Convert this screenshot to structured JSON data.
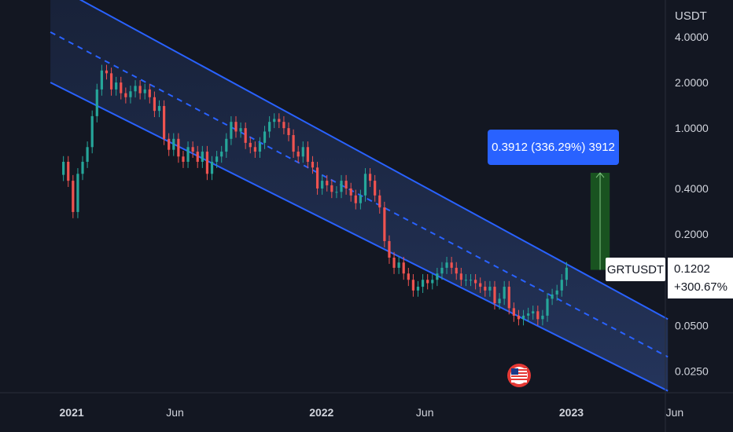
{
  "price_currency": "USDT",
  "symbol_label": "GRTUSDT",
  "last_price": "0.1202",
  "last_change": "+300.67%",
  "measure_label": "0.3912 (336.29%) 3912",
  "colors": {
    "background": "#131722",
    "up": "#26a69a",
    "down": "#ef5350",
    "channel": "#2962ff",
    "measure_fill": "#1b5e20",
    "measure_box": "#2962ff"
  },
  "chart_data": {
    "type": "candlestick",
    "title": "",
    "y_scale": "log",
    "y_ticks": [
      "4.0000",
      "2.0000",
      "1.0000",
      "0.4000",
      "0.2000",
      "0.0500",
      "0.0250"
    ],
    "x_ticks": [
      "2021",
      "Jun",
      "2022",
      "Jun",
      "2023",
      "Jun"
    ],
    "x_range": [
      "2020-11",
      "2023-07"
    ],
    "y_range": [
      0.018,
      7.0
    ],
    "last_price": 0.1202,
    "series": [
      {
        "interval_days": 7,
        "start": "2020-12-20",
        "close": [
          0.6,
          0.45,
          0.28,
          0.5,
          0.6,
          0.75,
          1.2,
          1.8,
          2.4,
          2.3,
          1.8,
          2.0,
          1.7,
          1.6,
          1.75,
          1.9,
          1.7,
          1.8,
          1.6,
          1.3,
          1.4,
          0.85,
          0.72,
          0.85,
          0.65,
          0.6,
          0.75,
          0.7,
          0.6,
          0.7,
          0.5,
          0.6,
          0.65,
          0.7,
          0.85,
          1.1,
          0.95,
          1.0,
          0.8,
          0.75,
          0.7,
          0.8,
          0.95,
          1.1,
          1.15,
          1.1,
          1.0,
          0.9,
          0.7,
          0.65,
          0.75,
          0.6,
          0.55,
          0.4,
          0.45,
          0.42,
          0.38,
          0.38,
          0.45,
          0.4,
          0.36,
          0.32,
          0.36,
          0.5,
          0.45,
          0.36,
          0.3,
          0.18,
          0.14,
          0.12,
          0.13,
          0.11,
          0.1,
          0.085,
          0.09,
          0.1,
          0.095,
          0.1,
          0.11,
          0.12,
          0.13,
          0.12,
          0.11,
          0.1,
          0.1,
          0.1,
          0.095,
          0.09,
          0.085,
          0.09,
          0.07,
          0.075,
          0.09,
          0.065,
          0.058,
          0.055,
          0.058,
          0.06,
          0.062,
          0.055,
          0.058,
          0.075,
          0.08,
          0.085,
          0.1,
          0.1202
        ]
      }
    ],
    "channel": {
      "upper": [
        {
          "date": "2020-12-01",
          "price": 9.0
        },
        {
          "date": "2023-05-22",
          "price": 0.055
        }
      ],
      "lower": [
        {
          "date": "2020-12-01",
          "price": 2.0
        },
        {
          "date": "2023-05-22",
          "price": 0.0185
        }
      ],
      "mid": [
        {
          "date": "2020-12-01",
          "price": 4.3
        },
        {
          "date": "2023-05-22",
          "price": 0.031
        }
      ]
    },
    "measure": {
      "from_date": "2023-01-29",
      "to_date": "2023-02-26",
      "from_price": 0.1163,
      "to_price": 0.5075
    }
  }
}
